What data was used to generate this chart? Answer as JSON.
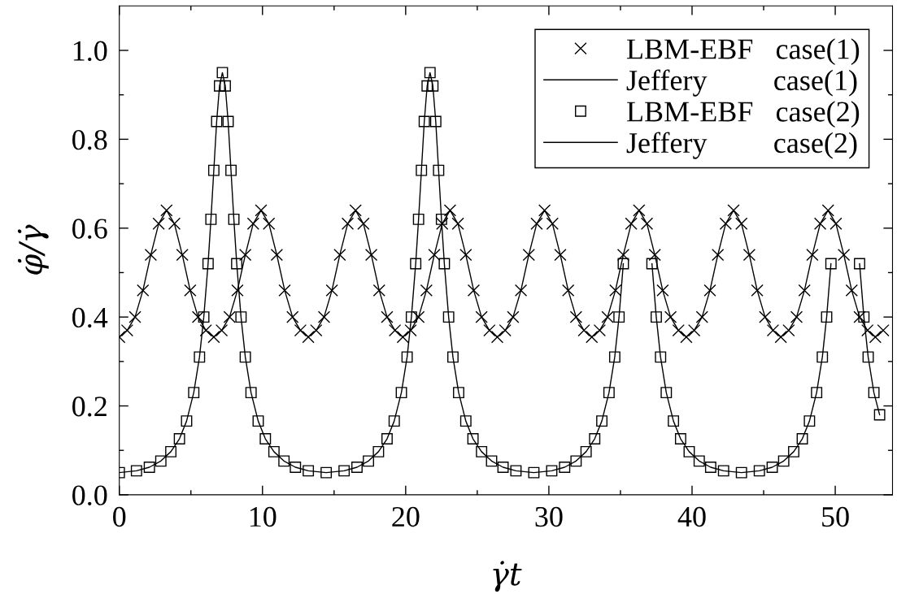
{
  "chart_data": {
    "type": "line",
    "xlabel": "γ̇t",
    "ylabel": "φ̇/γ̇",
    "x": [
      0,
      0.55,
      1.1,
      1.65,
      2.2,
      2.75,
      3.3,
      3.85,
      4.4,
      4.95,
      5.5,
      6.05,
      6.6,
      7.15,
      7.7,
      8.25,
      8.8,
      9.35,
      9.9,
      10.45,
      11,
      11.55,
      12.1,
      12.65,
      13.2,
      13.75,
      14.3,
      14.85,
      15.4,
      15.95,
      16.5,
      17.05,
      17.6,
      18.15,
      18.7,
      19.25,
      19.8,
      20.35,
      20.9,
      21.45,
      22,
      22.55,
      23.1,
      23.65,
      24.2,
      24.75,
      25.3,
      25.85,
      26.4,
      26.95,
      27.5,
      28.05,
      28.6,
      29.15,
      29.7,
      30.25,
      30.8,
      31.35,
      31.9,
      32.45,
      33,
      33.55,
      34.1,
      34.65,
      35.2,
      35.75,
      36.3,
      36.85,
      37.4,
      37.95,
      38.5,
      39.05,
      39.6,
      40.15,
      40.7,
      41.25,
      41.8,
      42.35,
      42.9,
      43.45,
      44,
      44.55,
      45.1,
      45.65,
      46.2,
      46.75,
      47.3,
      47.85,
      48.4,
      48.95,
      49.5,
      50.05,
      50.6,
      51.15,
      51.7,
      52.25,
      52.8,
      53.35
    ],
    "xlim": [
      0,
      54
    ],
    "ylim": [
      0,
      1.1
    ],
    "xticks": [
      0,
      {
        "value": 5,
        "label": null
      },
      10,
      {
        "value": 15,
        "label": null
      },
      20,
      {
        "value": 25,
        "label": null
      },
      30,
      {
        "value": 35,
        "label": null
      },
      40,
      {
        "value": 45,
        "label": null
      },
      50
    ],
    "yticks": [
      {
        "value": 0,
        "label": "0.0"
      },
      {
        "value": 0.1,
        "label": null
      },
      {
        "value": 0.2,
        "label": "0.2"
      },
      {
        "value": 0.3,
        "label": null
      },
      {
        "value": 0.4,
        "label": "0.4"
      },
      {
        "value": 0.5,
        "label": null
      },
      {
        "value": 0.6,
        "label": "0.6"
      },
      {
        "value": 0.7,
        "label": null
      },
      {
        "value": 0.8,
        "label": "0.8"
      },
      {
        "value": 0.9,
        "label": null
      },
      {
        "value": 1.0,
        "label": "1.0"
      }
    ],
    "grid": false,
    "legend": "top right",
    "series": [
      {
        "name": "LBM-EBF   case(1)",
        "type": "scatter",
        "marker": "cross",
        "color": "#000000",
        "values": [
          0.355,
          0.37,
          0.4,
          0.46,
          0.54,
          0.61,
          0.64,
          0.61,
          0.54,
          0.46,
          0.4,
          0.37,
          0.355,
          0.37,
          0.4,
          0.46,
          0.54,
          0.61,
          0.64,
          0.61,
          0.54,
          0.46,
          0.4,
          0.37,
          0.355,
          0.37,
          0.4,
          0.46,
          0.54,
          0.61,
          0.64,
          0.61,
          0.54,
          0.46,
          0.4,
          0.37,
          0.355,
          0.37,
          0.4,
          0.46,
          0.54,
          0.61,
          0.64,
          0.61,
          0.54,
          0.46,
          0.4,
          0.37,
          0.355,
          0.37,
          0.4,
          0.46,
          0.54,
          0.61,
          0.64,
          0.61,
          0.54,
          0.46,
          0.4,
          0.37,
          0.355,
          0.37,
          0.4,
          0.46,
          0.54,
          0.61,
          0.64,
          0.61,
          0.54,
          0.46,
          0.4,
          0.37,
          0.355,
          0.37,
          0.4,
          0.46,
          0.54,
          0.61,
          0.64,
          0.61,
          0.54,
          0.46,
          0.4,
          0.37,
          0.355,
          0.37,
          0.4,
          0.46,
          0.54,
          0.61,
          0.64,
          0.61,
          0.54,
          0.46,
          0.4,
          0.37,
          0.355,
          0.37
        ]
      },
      {
        "name": "Jeffery         case(1)",
        "type": "line",
        "line_style": "solid",
        "color": "#000000",
        "values": [
          0.355,
          0.37,
          0.4,
          0.46,
          0.54,
          0.61,
          0.64,
          0.61,
          0.54,
          0.46,
          0.4,
          0.37,
          0.355,
          0.37,
          0.4,
          0.46,
          0.54,
          0.61,
          0.64,
          0.61,
          0.54,
          0.46,
          0.4,
          0.37,
          0.355,
          0.37,
          0.4,
          0.46,
          0.54,
          0.61,
          0.64,
          0.61,
          0.54,
          0.46,
          0.4,
          0.37,
          0.355,
          0.37,
          0.4,
          0.46,
          0.54,
          0.61,
          0.64,
          0.61,
          0.54,
          0.46,
          0.4,
          0.37,
          0.355,
          0.37,
          0.4,
          0.46,
          0.54,
          0.61,
          0.64,
          0.61,
          0.54,
          0.46,
          0.4,
          0.37,
          0.355,
          0.37,
          0.4,
          0.46,
          0.54,
          0.61,
          0.64,
          0.61,
          0.54,
          0.46,
          0.4,
          0.37,
          0.355,
          0.37,
          0.4,
          0.46,
          0.54,
          0.61,
          0.64,
          0.61,
          0.54,
          0.46,
          0.4,
          0.37,
          0.355,
          0.37,
          0.4,
          0.46,
          0.54,
          0.61,
          0.64,
          0.61,
          0.54,
          0.46,
          0.4,
          0.37,
          0.355,
          0.37
        ]
      },
      {
        "name": "LBM-EBF   case(2)",
        "type": "scatter",
        "marker": "square",
        "color": "#000000",
        "x": [
          0,
          1.2,
          2.1,
          2.9,
          3.6,
          4.2,
          4.7,
          5.2,
          5.6,
          5.9,
          6.2,
          6.4,
          6.6,
          6.8,
          7.0,
          7.2,
          7.4,
          7.6,
          7.8,
          8.0,
          8.2,
          8.5,
          8.8,
          9.2,
          9.7,
          10.2,
          10.8,
          11.5,
          12.3,
          13.2,
          14.45,
          15.7,
          16.6,
          17.4,
          18.1,
          18.7,
          19.2,
          19.7,
          20.1,
          20.4,
          20.7,
          20.9,
          21.1,
          21.3,
          21.5,
          21.7,
          21.9,
          22.1,
          22.3,
          22.5,
          22.7,
          23.0,
          23.3,
          23.7,
          24.2,
          24.7,
          25.3,
          26.0,
          26.8,
          27.7,
          28.95,
          30.2,
          31.1,
          31.9,
          32.6,
          33.2,
          33.7,
          34.2,
          34.6,
          34.9,
          35.2,
          35.6,
          35.8,
          36.0,
          36.2,
          36.4,
          36.6,
          36.8,
          37.2,
          37.5,
          37.8,
          38.2,
          38.7,
          39.2,
          39.8,
          40.5,
          41.3,
          42.2,
          43.45,
          44.7,
          45.6,
          46.4,
          47.1,
          47.7,
          48.2,
          48.7,
          49.1,
          49.4,
          49.7,
          50.1,
          50.3,
          50.5,
          50.7,
          50.9,
          51.1,
          51.3,
          51.7,
          52.0,
          52.3,
          52.7,
          53.1
        ],
        "values": [
          0.05,
          0.054,
          0.062,
          0.076,
          0.097,
          0.126,
          0.166,
          0.23,
          0.31,
          0.4,
          0.52,
          0.62,
          0.73,
          0.84,
          0.92,
          0.95,
          0.92,
          0.84,
          0.73,
          0.62,
          0.52,
          0.4,
          0.31,
          0.23,
          0.166,
          0.126,
          0.097,
          0.076,
          0.062,
          0.054,
          0.05,
          0.054,
          0.062,
          0.076,
          0.097,
          0.126,
          0.166,
          0.23,
          0.31,
          0.4,
          0.52,
          0.62,
          0.73,
          0.84,
          0.92,
          0.95,
          0.92,
          0.84,
          0.73,
          0.62,
          0.52,
          0.4,
          0.31,
          0.23,
          0.166,
          0.126,
          0.097,
          0.076,
          0.062,
          0.054,
          0.05,
          0.054,
          0.062,
          0.076,
          0.097,
          0.126,
          0.166,
          0.23,
          0.31,
          0.4,
          0.52,
          null,
          null,
          null,
          null,
          null,
          null,
          null,
          0.52,
          0.4,
          0.31,
          0.23,
          0.166,
          0.126,
          0.097,
          0.076,
          0.062,
          0.054,
          0.05,
          0.054,
          0.062,
          0.076,
          0.097,
          0.126,
          0.166,
          0.23,
          0.31,
          0.4,
          0.52,
          null,
          null,
          null,
          null,
          null,
          null,
          null,
          0.52,
          0.4,
          0.31,
          0.23,
          0.18
        ]
      },
      {
        "name": "Jeffery         case(2)",
        "type": "line",
        "line_style": "solid",
        "color": "#000000",
        "x": [
          0,
          1.2,
          2.1,
          2.9,
          3.6,
          4.2,
          4.7,
          5.2,
          5.6,
          5.9,
          6.2,
          6.4,
          6.6,
          6.8,
          7.0,
          7.2,
          7.4,
          7.6,
          7.8,
          8.0,
          8.2,
          8.5,
          8.8,
          9.2,
          9.7,
          10.2,
          10.8,
          11.5,
          12.3,
          13.2,
          14.45,
          15.7,
          16.6,
          17.4,
          18.1,
          18.7,
          19.2,
          19.7,
          20.1,
          20.4,
          20.7,
          20.9,
          21.1,
          21.3,
          21.5,
          21.7,
          21.9,
          22.1,
          22.3,
          22.5,
          22.7,
          23.0,
          23.3,
          23.7,
          24.2,
          24.7,
          25.3,
          26.0,
          26.8,
          27.7,
          28.95,
          30.2,
          31.1,
          31.9,
          32.6,
          33.2,
          33.7,
          34.2,
          34.6,
          34.9,
          35.2,
          35.6,
          35.8,
          36.0,
          36.2,
          36.4,
          36.6,
          36.8,
          37.2,
          37.5,
          37.8,
          38.2,
          38.7,
          39.2,
          39.8,
          40.5,
          41.3,
          42.2,
          43.45,
          44.7,
          45.6,
          46.4,
          47.1,
          47.7,
          48.2,
          48.7,
          49.1,
          49.4,
          49.7,
          50.1,
          50.3,
          50.5,
          50.7,
          50.9,
          51.1,
          51.3,
          51.7,
          52.0,
          52.3,
          52.7,
          53.1
        ],
        "values": [
          0.05,
          0.054,
          0.062,
          0.076,
          0.097,
          0.126,
          0.166,
          0.23,
          0.31,
          0.4,
          0.52,
          0.62,
          0.73,
          0.84,
          0.92,
          0.95,
          0.92,
          0.84,
          0.73,
          0.62,
          0.52,
          0.4,
          0.31,
          0.23,
          0.166,
          0.126,
          0.097,
          0.076,
          0.062,
          0.054,
          0.05,
          0.054,
          0.062,
          0.076,
          0.097,
          0.126,
          0.166,
          0.23,
          0.31,
          0.4,
          0.52,
          0.62,
          0.73,
          0.84,
          0.92,
          0.95,
          0.92,
          0.84,
          0.73,
          0.62,
          0.52,
          0.4,
          0.31,
          0.23,
          0.166,
          0.126,
          0.097,
          0.076,
          0.062,
          0.054,
          0.05,
          0.054,
          0.062,
          0.076,
          0.097,
          0.126,
          0.166,
          0.23,
          0.31,
          0.4,
          0.52,
          null,
          null,
          null,
          null,
          null,
          null,
          null,
          0.52,
          0.4,
          0.31,
          0.23,
          0.166,
          0.126,
          0.097,
          0.076,
          0.062,
          0.054,
          0.05,
          0.054,
          0.062,
          0.076,
          0.097,
          0.126,
          0.166,
          0.23,
          0.31,
          0.4,
          0.52,
          null,
          null,
          null,
          null,
          null,
          null,
          null,
          0.52,
          0.4,
          0.31,
          0.23,
          0.18
        ]
      }
    ]
  }
}
